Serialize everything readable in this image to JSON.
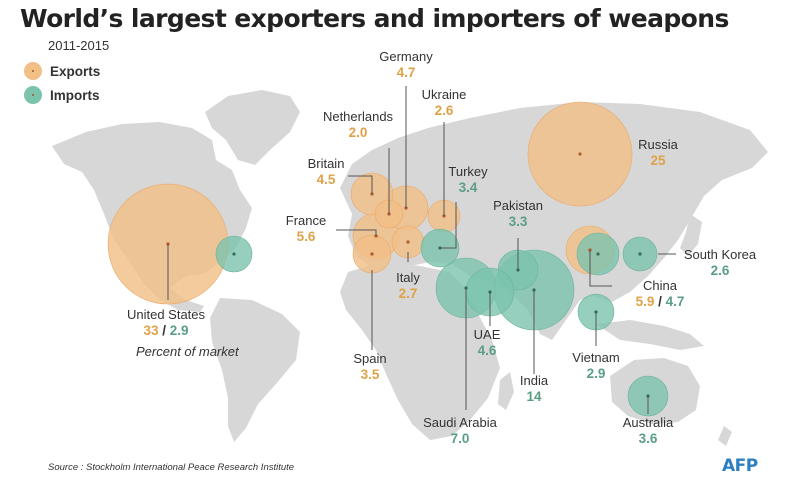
{
  "title": "World’s largest exporters and importers of weapons",
  "subtitle": "2011-2015",
  "legend": {
    "exports": "Exports",
    "imports": "Imports"
  },
  "colors": {
    "exports": "#f2bf87",
    "imports": "#7cc3ad",
    "export_text": "#e0a248",
    "import_text": "#5a9e84",
    "land": "#d7d7d7"
  },
  "countries": {
    "united_states": {
      "name": "United States",
      "exports": "33",
      "imports": "2.9"
    },
    "germany": {
      "name": "Germany",
      "exports": "4.7"
    },
    "netherlands": {
      "name": "Netherlands",
      "exports": "2.0"
    },
    "ukraine": {
      "name": "Ukraine",
      "exports": "2.6"
    },
    "britain": {
      "name": "Britain",
      "exports": "4.5"
    },
    "france": {
      "name": "France",
      "exports": "5.6"
    },
    "italy": {
      "name": "Italy",
      "exports": "2.7"
    },
    "spain": {
      "name": "Spain",
      "exports": "3.5"
    },
    "russia": {
      "name": "Russia",
      "exports": "25"
    },
    "china": {
      "name": "China",
      "exports": "5.9",
      "imports": "4.7"
    },
    "turkey": {
      "name": "Turkey",
      "imports": "3.4"
    },
    "pakistan": {
      "name": "Pakistan",
      "imports": "3.3"
    },
    "south_korea": {
      "name": "South Korea",
      "imports": "2.6"
    },
    "uae": {
      "name": "UAE",
      "imports": "4.6"
    },
    "india": {
      "name": "India",
      "imports": "14"
    },
    "vietnam": {
      "name": "Vietnam",
      "imports": "2.9"
    },
    "saudi_arabia": {
      "name": "Saudi Arabia",
      "imports": "7.0"
    },
    "australia": {
      "name": "Australia",
      "imports": "3.6"
    }
  },
  "note": "Percent of market",
  "source": "Source : Stockholm International Peace Research Institute",
  "logo": "AFP"
}
